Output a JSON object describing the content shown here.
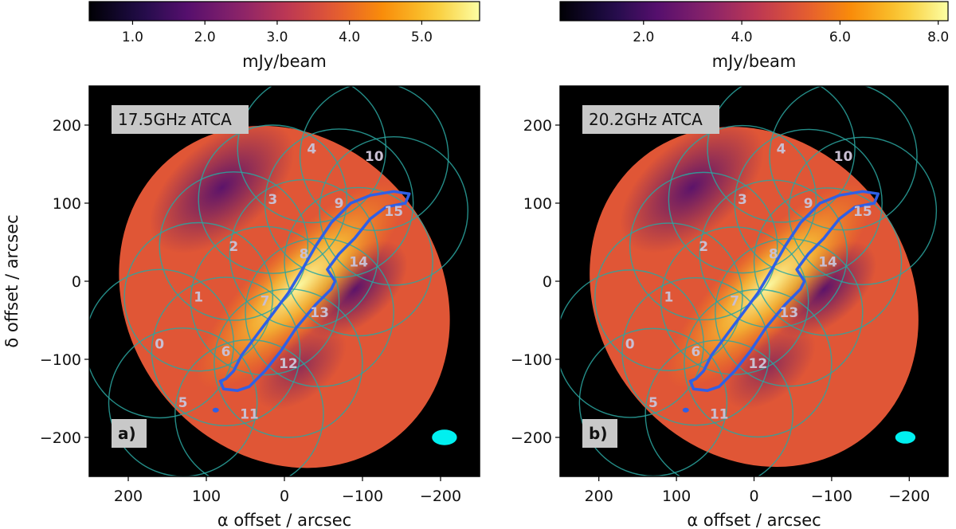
{
  "chart_data": [
    {
      "type": "heatmap",
      "panel_label": "a)",
      "title": "17.5GHz ATCA",
      "xlabel": "α offset / arcsec",
      "ylabel": "δ offset / arcsec",
      "xlim": [
        250,
        -250
      ],
      "ylim": [
        -250,
        250
      ],
      "xticks": [
        200,
        100,
        0,
        -100,
        -200
      ],
      "yticks": [
        200,
        100,
        0,
        -100,
        -200
      ],
      "colorbar": {
        "label": "mJy/beam",
        "range": [
          0.4,
          5.8
        ],
        "ticks": [
          1.0,
          2.0,
          3.0,
          4.0,
          5.0
        ],
        "tick_labels": [
          "1.0",
          "2.0",
          "3.0",
          "4.0",
          "5.0"
        ],
        "colormap": "inferno"
      },
      "beam": {
        "x": -205,
        "y": -200,
        "major": 32,
        "minor": 20
      },
      "pointings": [
        {
          "id": "0",
          "x": 160,
          "y": -80
        },
        {
          "id": "1",
          "x": 110,
          "y": -20
        },
        {
          "id": "2",
          "x": 65,
          "y": 45
        },
        {
          "id": "3",
          "x": 15,
          "y": 105
        },
        {
          "id": "4",
          "x": -35,
          "y": 170
        },
        {
          "id": "5",
          "x": 130,
          "y": -155
        },
        {
          "id": "6",
          "x": 75,
          "y": -90
        },
        {
          "id": "7",
          "x": 25,
          "y": -25
        },
        {
          "id": "8",
          "x": -25,
          "y": 35
        },
        {
          "id": "9",
          "x": -70,
          "y": 100
        },
        {
          "id": "10",
          "x": -115,
          "y": 160
        },
        {
          "id": "11",
          "x": 45,
          "y": -170
        },
        {
          "id": "12",
          "x": -5,
          "y": -105
        },
        {
          "id": "13",
          "x": -45,
          "y": -40
        },
        {
          "id": "14",
          "x": -95,
          "y": 25
        },
        {
          "id": "15",
          "x": -140,
          "y": 90
        }
      ]
    },
    {
      "type": "heatmap",
      "panel_label": "b)",
      "title": "20.2GHz ATCA",
      "xlabel": "α offset / arcsec",
      "ylabel": "",
      "xlim": [
        250,
        -250
      ],
      "ylim": [
        -250,
        250
      ],
      "xticks": [
        200,
        100,
        0,
        -100,
        -200
      ],
      "yticks": [
        200,
        100,
        0,
        -100,
        -200
      ],
      "colorbar": {
        "label": "mJy/beam",
        "range": [
          0.3,
          8.2
        ],
        "ticks": [
          2.0,
          4.0,
          6.0,
          8.0
        ],
        "tick_labels": [
          "2.0",
          "4.0",
          "6.0",
          "8.0"
        ],
        "colormap": "inferno"
      },
      "beam": {
        "x": -195,
        "y": -200,
        "major": 26,
        "minor": 16
      },
      "pointings": [
        {
          "id": "0",
          "x": 160,
          "y": -80
        },
        {
          "id": "1",
          "x": 110,
          "y": -20
        },
        {
          "id": "2",
          "x": 65,
          "y": 45
        },
        {
          "id": "3",
          "x": 15,
          "y": 105
        },
        {
          "id": "4",
          "x": -35,
          "y": 170
        },
        {
          "id": "5",
          "x": 130,
          "y": -155
        },
        {
          "id": "6",
          "x": 75,
          "y": -90
        },
        {
          "id": "7",
          "x": 25,
          "y": -25
        },
        {
          "id": "8",
          "x": -25,
          "y": 35
        },
        {
          "id": "9",
          "x": -70,
          "y": 100
        },
        {
          "id": "10",
          "x": -115,
          "y": 160
        },
        {
          "id": "11",
          "x": 45,
          "y": -170
        },
        {
          "id": "12",
          "x": -5,
          "y": -105
        },
        {
          "id": "13",
          "x": -45,
          "y": -40
        },
        {
          "id": "14",
          "x": -95,
          "y": 25
        },
        {
          "id": "15",
          "x": -140,
          "y": 90
        }
      ]
    }
  ],
  "colors": {
    "background": "#000000",
    "pointing_circle": "#2aa6a0",
    "contour": "#2f5fe6",
    "beam": "#00f0f0",
    "pointing_label": "#c9bfd2",
    "label_box": "#c8c8c8"
  }
}
